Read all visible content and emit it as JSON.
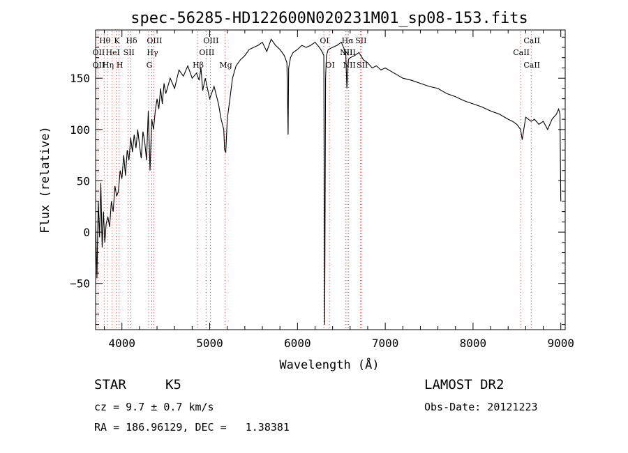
{
  "chart_data": {
    "type": "line",
    "title": "spec-56285-HD122600N020231M01_sp08-153.fits",
    "xlabel": "Wavelength (Å)",
    "ylabel": "Flux (relative)",
    "xlim": [
      3700,
      9050
    ],
    "ylim": [
      -95,
      197
    ],
    "x_ticks": [
      4000,
      5000,
      6000,
      7000,
      8000,
      9000
    ],
    "y_ticks": [
      -50,
      0,
      50,
      100,
      150
    ],
    "grid": false,
    "legend": "none",
    "line_color": "#000000",
    "marker_color": "#cc3333",
    "series": [
      {
        "x": [
          3700,
          3715,
          3730,
          3745,
          3760,
          3775,
          3790,
          3805,
          3820,
          3840,
          3860,
          3880,
          3900,
          3920,
          3940,
          3960,
          3980,
          4000,
          4020,
          4040,
          4060,
          4080,
          4100,
          4120,
          4140,
          4160,
          4180,
          4200,
          4220,
          4240,
          4260,
          4280,
          4300,
          4320,
          4340,
          4360,
          4380,
          4400,
          4420,
          4440,
          4460,
          4480,
          4500,
          4550,
          4600,
          4650,
          4700,
          4750,
          4800,
          4850,
          4880,
          4900,
          4920,
          4950,
          5000,
          5050,
          5100,
          5130,
          5160,
          5170,
          5183,
          5200,
          5230,
          5260,
          5300,
          5350,
          5400,
          5450,
          5500,
          5550,
          5600,
          5650,
          5700,
          5750,
          5800,
          5850,
          5880,
          5893,
          5900,
          5920,
          5950,
          6000,
          6050,
          6100,
          6150,
          6200,
          6250,
          6280,
          6300,
          6310,
          6320,
          6330,
          6350,
          6400,
          6450,
          6500,
          6550,
          6563,
          6580,
          6600,
          6650,
          6700,
          6750,
          6800,
          6850,
          6900,
          6950,
          7000,
          7100,
          7200,
          7300,
          7400,
          7500,
          7600,
          7700,
          7800,
          7900,
          8000,
          8100,
          8200,
          8300,
          8400,
          8450,
          8500,
          8542,
          8560,
          8600,
          8662,
          8700,
          8750,
          8800,
          8850,
          8900,
          8950,
          8975,
          8990,
          9000
        ],
        "values": [
          10,
          -45,
          30,
          -5,
          48,
          -15,
          20,
          -10,
          8,
          15,
          5,
          30,
          20,
          45,
          35,
          40,
          60,
          52,
          75,
          55,
          80,
          70,
          92,
          78,
          95,
          82,
          100,
          85,
          72,
          98,
          88,
          70,
          118,
          60,
          110,
          100,
          118,
          130,
          120,
          140,
          125,
          145,
          135,
          150,
          140,
          158,
          152,
          162,
          150,
          155,
          148,
          160,
          138,
          150,
          130,
          142,
          125,
          110,
          100,
          80,
          78,
          110,
          130,
          150,
          162,
          168,
          172,
          178,
          180,
          182,
          185,
          176,
          188,
          182,
          178,
          172,
          165,
          95,
          160,
          170,
          175,
          178,
          182,
          180,
          182,
          185,
          180,
          176,
          172,
          -90,
          150,
          172,
          178,
          180,
          182,
          185,
          175,
          140,
          168,
          170,
          172,
          175,
          168,
          165,
          160,
          162,
          158,
          160,
          155,
          150,
          148,
          145,
          142,
          140,
          135,
          132,
          128,
          125,
          122,
          118,
          115,
          110,
          108,
          105,
          100,
          90,
          112,
          108,
          110,
          105,
          108,
          100,
          110,
          115,
          120,
          115,
          30
        ]
      }
    ],
    "spectral_lines": [
      {
        "label": "Hθ",
        "x": 3797,
        "row": 1
      },
      {
        "label": "K",
        "x": 3934,
        "row": 1
      },
      {
        "label": "Hδ",
        "x": 4102,
        "row": 1
      },
      {
        "label": "OIII",
        "x": 4363,
        "row": 1
      },
      {
        "label": "OIII",
        "x": 5007,
        "row": 1
      },
      {
        "label": "OI",
        "x": 6300,
        "row": 1
      },
      {
        "label": "Hα",
        "x": 6563,
        "row": 1
      },
      {
        "label": "SII",
        "x": 6716,
        "row": 1
      },
      {
        "label": "CaII",
        "x": 8662,
        "row": 1
      },
      {
        "label": "OII",
        "x": 3727,
        "row": 2
      },
      {
        "label": "HeI",
        "x": 3889,
        "row": 2
      },
      {
        "label": "SII",
        "x": 4072,
        "row": 2
      },
      {
        "label": "Hγ",
        "x": 4340,
        "row": 2
      },
      {
        "label": "OIII",
        "x": 4959,
        "row": 2
      },
      {
        "label": "NII",
        "x": 6548,
        "row": 2
      },
      {
        "label": "NII",
        "x": 6583,
        "row": 2
      },
      {
        "label": "CaII",
        "x": 8542,
        "row": 2
      },
      {
        "label": "OII",
        "x": 3727,
        "row": 3
      },
      {
        "label": "Hη",
        "x": 3835,
        "row": 3
      },
      {
        "label": "H",
        "x": 3968,
        "row": 3
      },
      {
        "label": "G",
        "x": 4304,
        "row": 3
      },
      {
        "label": "Hβ",
        "x": 4861,
        "row": 3
      },
      {
        "label": "Mg",
        "x": 5175,
        "row": 3
      },
      {
        "label": "OI",
        "x": 6364,
        "row": 3
      },
      {
        "label": "NII",
        "x": 6583,
        "row": 3
      },
      {
        "label": "SII",
        "x": 6731,
        "row": 3
      },
      {
        "label": "CaII",
        "x": 8662,
        "row": 3
      }
    ]
  },
  "info": {
    "object_class": "STAR",
    "subclass": "K5",
    "survey": "LAMOST DR2",
    "cz": "cz = 9.7 ± 0.7 km/s",
    "obs_date": "Obs-Date: 20121223",
    "coords": "RA = 186.96129, DEC =   1.38381"
  }
}
